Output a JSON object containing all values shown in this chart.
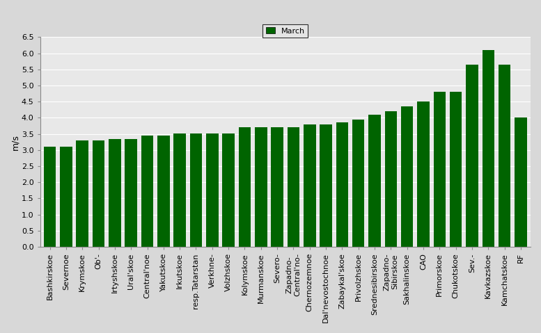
{
  "categories": [
    "Bashkirskoe",
    "Severnoe",
    "Krymskoe",
    "Ob'-",
    "Irtyshskoe",
    "Ural'skoe",
    "Central'noe",
    "Yakutskoe",
    "Irkutskoe",
    "resp.Tatarstan",
    "Verkhne-",
    "Volzhskoe",
    "Kolymskoe",
    "Murmanskoe",
    "Severo-",
    "Zapadno-\nCentral'no-",
    "Chernozemnoe",
    "Dal'nevostochnoe",
    "Zabaykal'skoe",
    "Privolzhskoe",
    "Srednesibirskoe",
    "Zapadno-\nSibirskoe",
    "Sakhalinskoe",
    "CAO",
    "Primorskoe",
    "Chukotskoe",
    "Sev.-",
    "Kavkazskoe",
    "Kamchatskoe",
    "RF"
  ],
  "values": [
    3.1,
    3.1,
    3.3,
    3.3,
    3.35,
    3.35,
    3.45,
    3.45,
    3.52,
    3.52,
    3.52,
    3.52,
    3.7,
    3.7,
    3.7,
    3.7,
    3.8,
    3.8,
    3.85,
    3.95,
    4.1,
    4.2,
    4.35,
    4.5,
    4.8,
    4.8,
    5.65,
    6.1,
    5.65,
    4.0
  ],
  "bar_color": "#006400",
  "fig_background": "#d8d8d8",
  "axes_background": "#e8e8e8",
  "ylabel": "m/s",
  "ylim": [
    0,
    6.5
  ],
  "yticks": [
    0,
    0.5,
    1.0,
    1.5,
    2.0,
    2.5,
    3.0,
    3.5,
    4.0,
    4.5,
    5.0,
    5.5,
    6.0,
    6.5
  ],
  "legend_label": "March",
  "legend_color": "#006400",
  "grid_color": "#ffffff",
  "tick_fontsize": 8,
  "ylabel_fontsize": 9
}
